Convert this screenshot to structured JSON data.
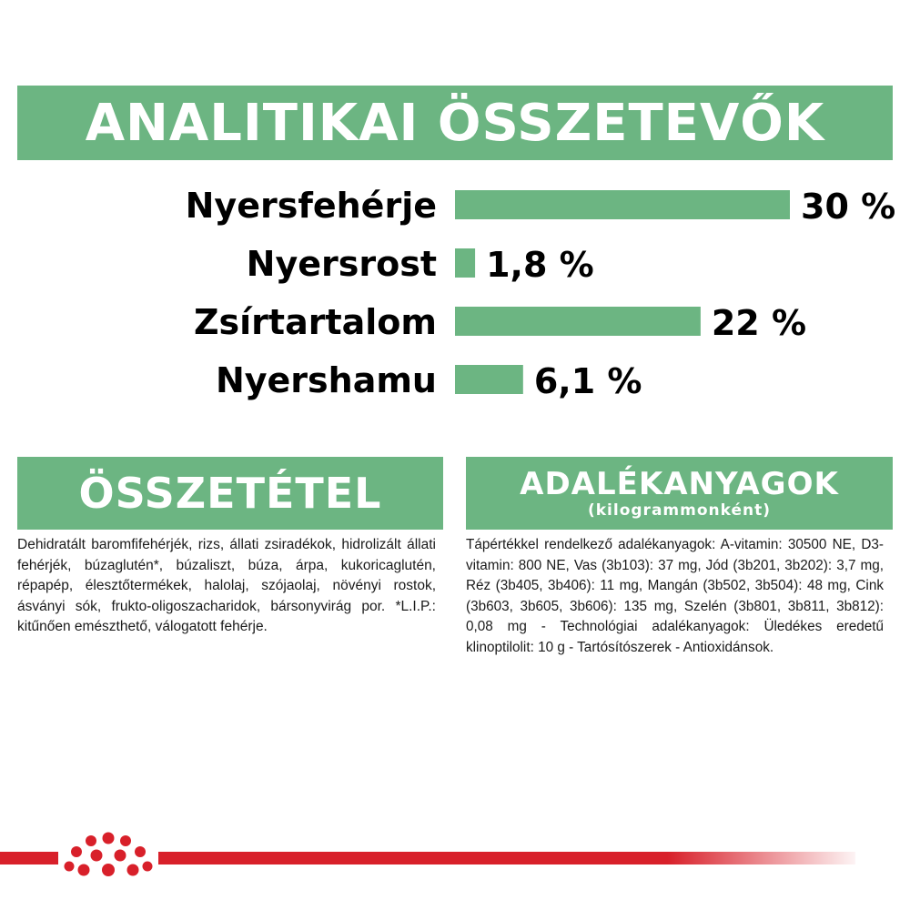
{
  "analytic_title": "ANALITIKAI ÖSSZETEVŐK",
  "composition_title": "ÖSSZETÉTEL",
  "additives_title": "ADALÉKANYAGOK",
  "additives_subtitle": "(kilogrammonként)",
  "composition_text": "Dehidratált baromfifehérjék, rizs, állati zsiradékok, hidrolizált állati fehérjék, búzaglutén*, búzaliszt, búza, árpa, kukoricaglutén, répapép, élesztőtermékek, halolaj, szójaolaj, növényi rostok, ásványi sók, frukto-oligoszacharidok, bársonyvirág por. *L.I.P.: kitűnően emészthető, válogatott fehérje.",
  "additives_text": "Tápértékkel rendelkező adalékanyagok: A-vitamin: 30500 NE, D3-vitamin: 800 NE, Vas (3b103): 37 mg, Jód (3b201, 3b202): 3,7 mg, Réz (3b405, 3b406): 11 mg, Mangán (3b502, 3b504): 48 mg, Cink (3b603, 3b605, 3b606): 135 mg, Szelén (3b801, 3b811, 3b812): 0,08 mg - Technológiai adalékanyagok: Üledékes eredetű klinoptilolit: 10 g - Tartósítószerek - Antioxidánsok.",
  "colors": {
    "green": "#6cb582",
    "red": "#d8202a",
    "text": "#000000"
  },
  "logo": "royal-crown-icon",
  "chart_data": {
    "type": "bar",
    "orientation": "horizontal",
    "categories": [
      "Nyersfehérje",
      "Nyersrost",
      "Zsírtartalom",
      "Nyershamu"
    ],
    "values": [
      30,
      1.8,
      22,
      6.1
    ],
    "value_labels": [
      "30 %",
      "1,8 %",
      "22 %",
      "6,1 %"
    ],
    "unit": "%",
    "xlim": [
      0,
      30
    ],
    "grid": false,
    "legend": "none"
  }
}
